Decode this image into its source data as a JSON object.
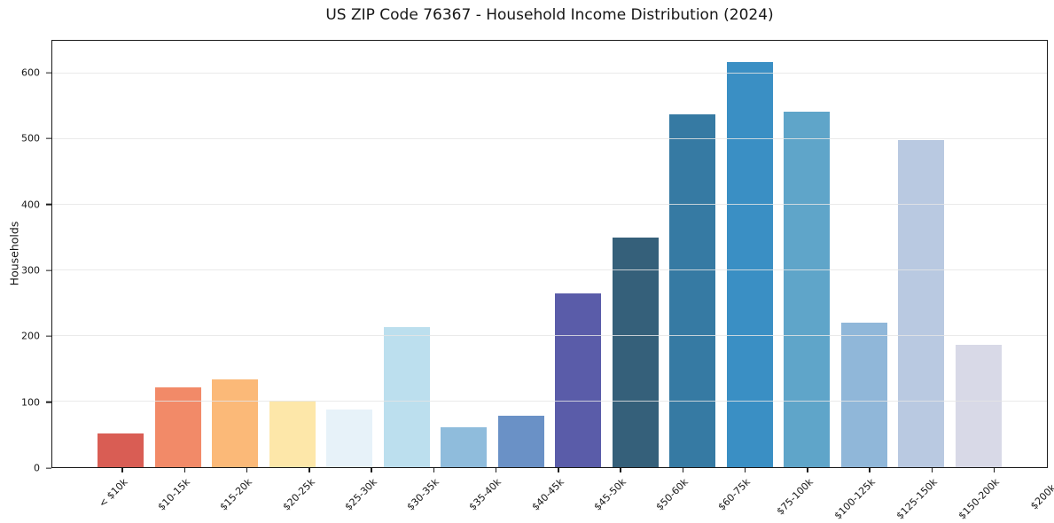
{
  "chart_data": {
    "type": "bar",
    "title": "US ZIP Code 76367 - Household Income Distribution (2024)",
    "xlabel": "",
    "ylabel": "Households",
    "categories": [
      "< $10k",
      "$10-15k",
      "$15-20k",
      "$20-25k",
      "$25-30k",
      "$30-35k",
      "$35-40k",
      "$40-45k",
      "$45-50k",
      "$50-60k",
      "$60-75k",
      "$75-100k",
      "$100-125k",
      "$125-150k",
      "$150-200k",
      "$200k+"
    ],
    "values": [
      52,
      122,
      134,
      101,
      88,
      213,
      61,
      79,
      265,
      350,
      538,
      618,
      542,
      220,
      499,
      187
    ],
    "bar_colors": [
      "#d95d54",
      "#f28a68",
      "#fbb978",
      "#fde7a9",
      "#e7f2f9",
      "#bcdfee",
      "#8fbcdc",
      "#6a91c6",
      "#5a5ca9",
      "#35607a",
      "#367aa3",
      "#3a8fc4",
      "#5fa5c9",
      "#90b7d9",
      "#b9c9e1",
      "#d8d9e7"
    ],
    "yticks": [
      0,
      100,
      200,
      300,
      400,
      500,
      600
    ],
    "ylim": [
      0,
      650
    ],
    "grid": "horizontal gridlines drawn over bars",
    "grid_color": "#e5e5e5",
    "spine_color": "#1a1a1a",
    "background_color": "#ffffff",
    "legend": "none",
    "x_tick_label_rotation_deg": 45
  }
}
